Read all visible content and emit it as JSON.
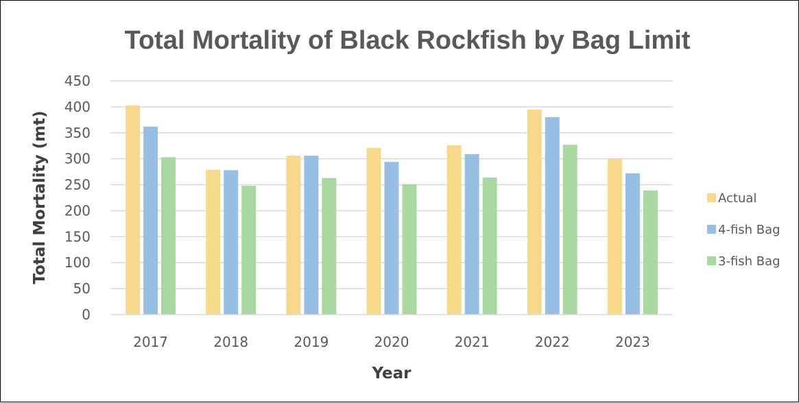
{
  "chart_data": {
    "type": "bar",
    "title": "Total Mortality of Black Rockfish by Bag Limit",
    "xlabel": "Year",
    "ylabel": "Total Mortality (mt)",
    "categories": [
      "2017",
      "2018",
      "2019",
      "2020",
      "2021",
      "2022",
      "2023"
    ],
    "series": [
      {
        "name": "Actual",
        "color": "#F6D98A",
        "values": [
          403,
          279,
          306,
          321,
          326,
          395,
          299
        ]
      },
      {
        "name": "4-fish Bag",
        "color": "#97BFE4",
        "values": [
          362,
          278,
          306,
          294,
          309,
          380,
          272
        ]
      },
      {
        "name": "3-fish Bag",
        "color": "#A9D9A0",
        "values": [
          303,
          248,
          263,
          251,
          264,
          327,
          239
        ]
      }
    ],
    "ylim": [
      0,
      450
    ],
    "ytick_step": 50,
    "grid": true,
    "gridline_color": "#D9D9D9",
    "legend_position": "right"
  }
}
